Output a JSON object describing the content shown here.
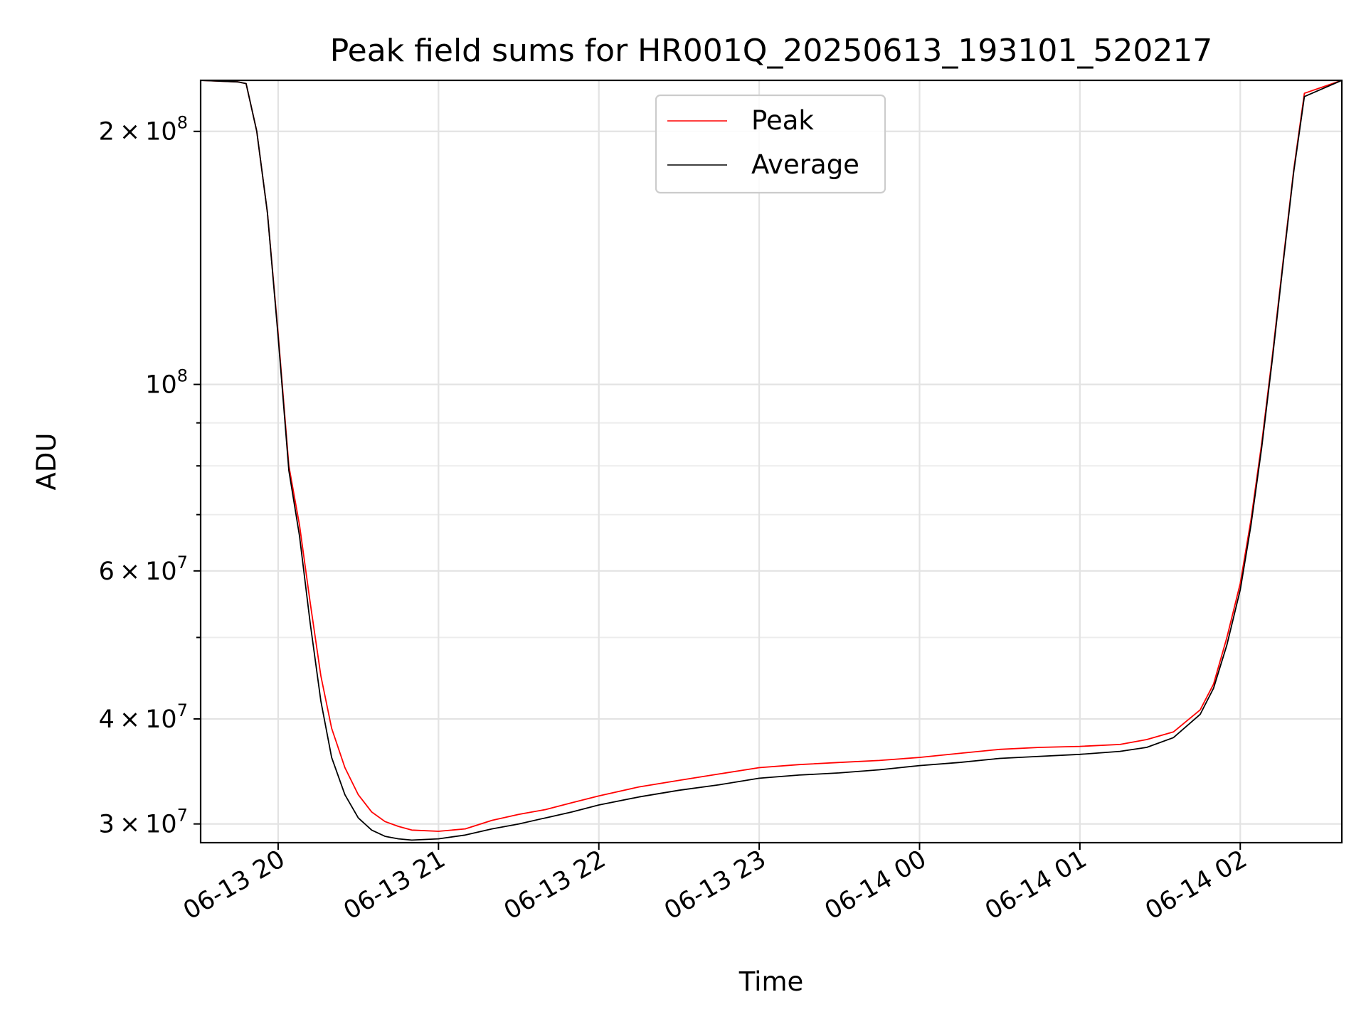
{
  "chart_data": {
    "type": "line",
    "title": "Peak field sums for HR001Q_20250613_193101_520217",
    "xlabel": "Time",
    "ylabel": "ADU",
    "yscale": "log",
    "grid": true,
    "legend_position": "upper-center",
    "x_tick_labels": [
      "06-13 20",
      "06-13 21",
      "06-13 22",
      "06-13 23",
      "06-14 00",
      "06-14 01",
      "06-14 02"
    ],
    "x_ticks": [
      "2025-06-13T20:00",
      "2025-06-13T21:00",
      "2025-06-13T22:00",
      "2025-06-13T23:00",
      "2025-06-14T00:00",
      "2025-06-14T01:00",
      "2025-06-14T02:00"
    ],
    "xlim": [
      "2025-06-13T19:31",
      "2025-06-14T02:38"
    ],
    "y_tick_labels": [
      {
        "value": 30000000,
        "mant": "3",
        "exp": "7"
      },
      {
        "value": 40000000,
        "mant": "4",
        "exp": "7"
      },
      {
        "value": 60000000,
        "mant": "6",
        "exp": "7"
      },
      {
        "value": 100000000,
        "mant": "",
        "exp": "8"
      },
      {
        "value": 200000000,
        "mant": "2",
        "exp": "8"
      }
    ],
    "ylim": [
      28500000,
      230000000
    ],
    "series": [
      {
        "name": "Peak",
        "color": "#ff0000",
        "x": [
          "2025-06-13T19:31",
          "2025-06-13T19:45",
          "2025-06-13T19:48",
          "2025-06-13T19:52",
          "2025-06-13T19:56",
          "2025-06-13T20:00",
          "2025-06-13T20:04",
          "2025-06-13T20:08",
          "2025-06-13T20:12",
          "2025-06-13T20:16",
          "2025-06-13T20:20",
          "2025-06-13T20:25",
          "2025-06-13T20:30",
          "2025-06-13T20:35",
          "2025-06-13T20:40",
          "2025-06-13T20:45",
          "2025-06-13T20:50",
          "2025-06-13T21:00",
          "2025-06-13T21:10",
          "2025-06-13T21:20",
          "2025-06-13T21:30",
          "2025-06-13T21:40",
          "2025-06-13T21:50",
          "2025-06-13T22:00",
          "2025-06-13T22:15",
          "2025-06-13T22:30",
          "2025-06-13T22:45",
          "2025-06-13T23:00",
          "2025-06-13T23:15",
          "2025-06-13T23:30",
          "2025-06-13T23:45",
          "2025-06-14T00:00",
          "2025-06-14T00:15",
          "2025-06-14T00:30",
          "2025-06-14T00:45",
          "2025-06-14T01:00",
          "2025-06-14T01:15",
          "2025-06-14T01:25",
          "2025-06-14T01:35",
          "2025-06-14T01:45",
          "2025-06-14T01:50",
          "2025-06-14T01:55",
          "2025-06-14T02:00",
          "2025-06-14T02:04",
          "2025-06-14T02:08",
          "2025-06-14T02:12",
          "2025-06-14T02:16",
          "2025-06-14T02:20",
          "2025-06-14T02:24",
          "2025-06-14T02:38"
        ],
        "values": [
          230000000,
          229000000,
          228000000,
          200000000,
          160000000,
          115000000,
          80000000,
          68000000,
          55000000,
          45000000,
          39000000,
          35000000,
          32500000,
          31000000,
          30200000,
          29800000,
          29500000,
          29400000,
          29600000,
          30300000,
          30800000,
          31200000,
          31800000,
          32400000,
          33200000,
          33800000,
          34400000,
          35000000,
          35300000,
          35500000,
          35700000,
          36000000,
          36400000,
          36800000,
          37000000,
          37100000,
          37300000,
          37800000,
          38600000,
          41000000,
          44000000,
          50000000,
          58000000,
          69000000,
          85000000,
          108000000,
          140000000,
          180000000,
          222000000,
          230000000
        ]
      },
      {
        "name": "Average",
        "color": "#000000",
        "x": [
          "2025-06-13T19:31",
          "2025-06-13T19:45",
          "2025-06-13T19:48",
          "2025-06-13T19:52",
          "2025-06-13T19:56",
          "2025-06-13T20:00",
          "2025-06-13T20:04",
          "2025-06-13T20:08",
          "2025-06-13T20:12",
          "2025-06-13T20:16",
          "2025-06-13T20:20",
          "2025-06-13T20:25",
          "2025-06-13T20:30",
          "2025-06-13T20:35",
          "2025-06-13T20:40",
          "2025-06-13T20:45",
          "2025-06-13T20:50",
          "2025-06-13T21:00",
          "2025-06-13T21:10",
          "2025-06-13T21:20",
          "2025-06-13T21:30",
          "2025-06-13T21:40",
          "2025-06-13T21:50",
          "2025-06-13T22:00",
          "2025-06-13T22:15",
          "2025-06-13T22:30",
          "2025-06-13T22:45",
          "2025-06-13T23:00",
          "2025-06-13T23:15",
          "2025-06-13T23:30",
          "2025-06-13T23:45",
          "2025-06-14T00:00",
          "2025-06-14T00:15",
          "2025-06-14T00:30",
          "2025-06-14T00:45",
          "2025-06-14T01:00",
          "2025-06-14T01:15",
          "2025-06-14T01:25",
          "2025-06-14T01:35",
          "2025-06-14T01:45",
          "2025-06-14T01:50",
          "2025-06-14T01:55",
          "2025-06-14T02:00",
          "2025-06-14T02:04",
          "2025-06-14T02:08",
          "2025-06-14T02:12",
          "2025-06-14T02:16",
          "2025-06-14T02:20",
          "2025-06-14T02:24",
          "2025-06-14T02:38"
        ],
        "values": [
          230000000,
          229000000,
          228000000,
          200000000,
          160000000,
          114000000,
          79000000,
          66000000,
          52000000,
          42000000,
          36000000,
          32500000,
          30500000,
          29500000,
          29000000,
          28800000,
          28700000,
          28800000,
          29100000,
          29600000,
          30000000,
          30500000,
          31000000,
          31600000,
          32300000,
          32900000,
          33400000,
          34000000,
          34300000,
          34500000,
          34800000,
          35200000,
          35500000,
          35900000,
          36100000,
          36300000,
          36600000,
          37000000,
          38000000,
          40500000,
          43500000,
          49000000,
          57000000,
          68000000,
          84000000,
          107000000,
          139000000,
          179000000,
          220000000,
          230000000
        ]
      }
    ]
  }
}
